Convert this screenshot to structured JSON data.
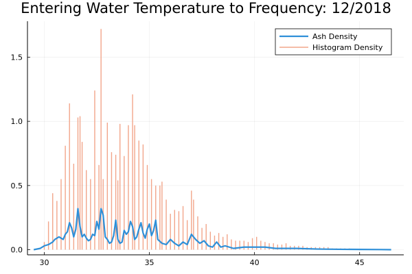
{
  "chart_data": {
    "type": "line",
    "title": "Entering Water Temperature to Frequency: 12/2018",
    "xlabel": "",
    "ylabel": "",
    "xlim": [
      29.2,
      47.1
    ],
    "ylim": [
      -0.04,
      1.78
    ],
    "x_ticks": [
      30,
      35,
      40,
      45
    ],
    "y_ticks": [
      0.0,
      0.5,
      1.0,
      1.5
    ],
    "x_tick_labels": [
      "30",
      "35",
      "40",
      "45"
    ],
    "y_tick_labels": [
      "0.0",
      "0.5",
      "1.0",
      "1.5"
    ],
    "grid": true,
    "legend_position": "top-right",
    "colors": {
      "ash": "#2e8fd8",
      "hist": "#f2a58a"
    },
    "legend": [
      "Ash Density",
      "Histogram Density"
    ],
    "series": [
      {
        "name": "Histogram Density",
        "style": "vertical-sticks",
        "x": [
          30.0,
          30.2,
          30.4,
          30.6,
          30.8,
          31.0,
          31.2,
          31.4,
          31.6,
          31.7,
          31.8,
          32.0,
          32.2,
          32.4,
          32.6,
          32.7,
          32.8,
          33.0,
          33.2,
          33.4,
          33.5,
          33.6,
          33.8,
          34.0,
          34.2,
          34.3,
          34.5,
          34.7,
          34.9,
          35.1,
          35.3,
          35.5,
          35.6,
          35.8,
          36.0,
          36.2,
          36.4,
          36.6,
          36.8,
          37.0,
          37.1,
          37.3,
          37.5,
          37.7,
          37.9,
          38.1,
          38.3,
          38.5,
          38.7,
          38.9,
          39.1,
          39.3,
          39.5,
          39.7,
          39.9,
          40.1,
          40.3,
          40.5,
          40.7,
          40.9,
          41.1,
          41.3,
          41.5,
          41.7,
          41.9,
          42.1,
          42.3,
          42.5,
          42.7,
          42.9,
          43.1,
          43.3,
          43.5,
          43.7,
          43.9,
          44.1,
          44.3,
          44.5
        ],
        "y": [
          0.06,
          0.22,
          0.44,
          0.38,
          0.55,
          0.81,
          1.14,
          0.67,
          1.03,
          1.04,
          0.84,
          0.62,
          0.55,
          1.24,
          0.66,
          1.72,
          0.55,
          0.99,
          0.76,
          0.74,
          0.54,
          0.98,
          0.73,
          0.97,
          1.21,
          0.97,
          0.85,
          0.82,
          0.66,
          0.55,
          0.5,
          0.5,
          0.53,
          0.39,
          0.28,
          0.31,
          0.3,
          0.34,
          0.23,
          0.46,
          0.39,
          0.26,
          0.17,
          0.2,
          0.14,
          0.11,
          0.13,
          0.1,
          0.12,
          0.08,
          0.07,
          0.07,
          0.07,
          0.06,
          0.09,
          0.1,
          0.07,
          0.06,
          0.05,
          0.05,
          0.04,
          0.04,
          0.05,
          0.03,
          0.03,
          0.03,
          0.03,
          0.02,
          0.02,
          0.02,
          0.02,
          0.02,
          0.02,
          0.01,
          0.01,
          0.01,
          0.01,
          0.01
        ]
      },
      {
        "name": "Ash Density",
        "style": "line",
        "x": [
          29.5,
          29.8,
          30.0,
          30.2,
          30.4,
          30.5,
          30.7,
          30.9,
          31.0,
          31.1,
          31.2,
          31.3,
          31.4,
          31.5,
          31.6,
          31.7,
          31.8,
          31.9,
          32.0,
          32.1,
          32.2,
          32.3,
          32.4,
          32.5,
          32.6,
          32.7,
          32.8,
          32.9,
          33.0,
          33.1,
          33.2,
          33.3,
          33.4,
          33.5,
          33.6,
          33.7,
          33.8,
          33.9,
          34.0,
          34.1,
          34.2,
          34.3,
          34.4,
          34.5,
          34.6,
          34.7,
          34.8,
          34.9,
          35.0,
          35.1,
          35.2,
          35.3,
          35.4,
          35.6,
          35.8,
          36.0,
          36.2,
          36.4,
          36.6,
          36.8,
          37.0,
          37.2,
          37.4,
          37.6,
          37.8,
          38.0,
          38.2,
          38.4,
          38.6,
          38.8,
          39.0,
          39.5,
          40.0,
          40.5,
          41.0,
          41.5,
          42.0,
          43.0,
          44.0,
          45.0,
          46.0,
          46.5
        ],
        "y": [
          0.0,
          0.01,
          0.03,
          0.04,
          0.06,
          0.08,
          0.1,
          0.08,
          0.12,
          0.14,
          0.21,
          0.17,
          0.1,
          0.16,
          0.32,
          0.18,
          0.1,
          0.12,
          0.09,
          0.07,
          0.08,
          0.12,
          0.11,
          0.22,
          0.16,
          0.32,
          0.27,
          0.1,
          0.08,
          0.05,
          0.06,
          0.11,
          0.23,
          0.08,
          0.05,
          0.06,
          0.15,
          0.12,
          0.14,
          0.22,
          0.18,
          0.08,
          0.1,
          0.16,
          0.21,
          0.13,
          0.09,
          0.16,
          0.2,
          0.11,
          0.15,
          0.23,
          0.08,
          0.05,
          0.04,
          0.08,
          0.05,
          0.03,
          0.06,
          0.04,
          0.12,
          0.08,
          0.05,
          0.07,
          0.03,
          0.02,
          0.06,
          0.02,
          0.03,
          0.02,
          0.01,
          0.02,
          0.02,
          0.02,
          0.01,
          0.01,
          0.01,
          0.005,
          0.003,
          0.002,
          0.001,
          0.0
        ]
      }
    ]
  }
}
